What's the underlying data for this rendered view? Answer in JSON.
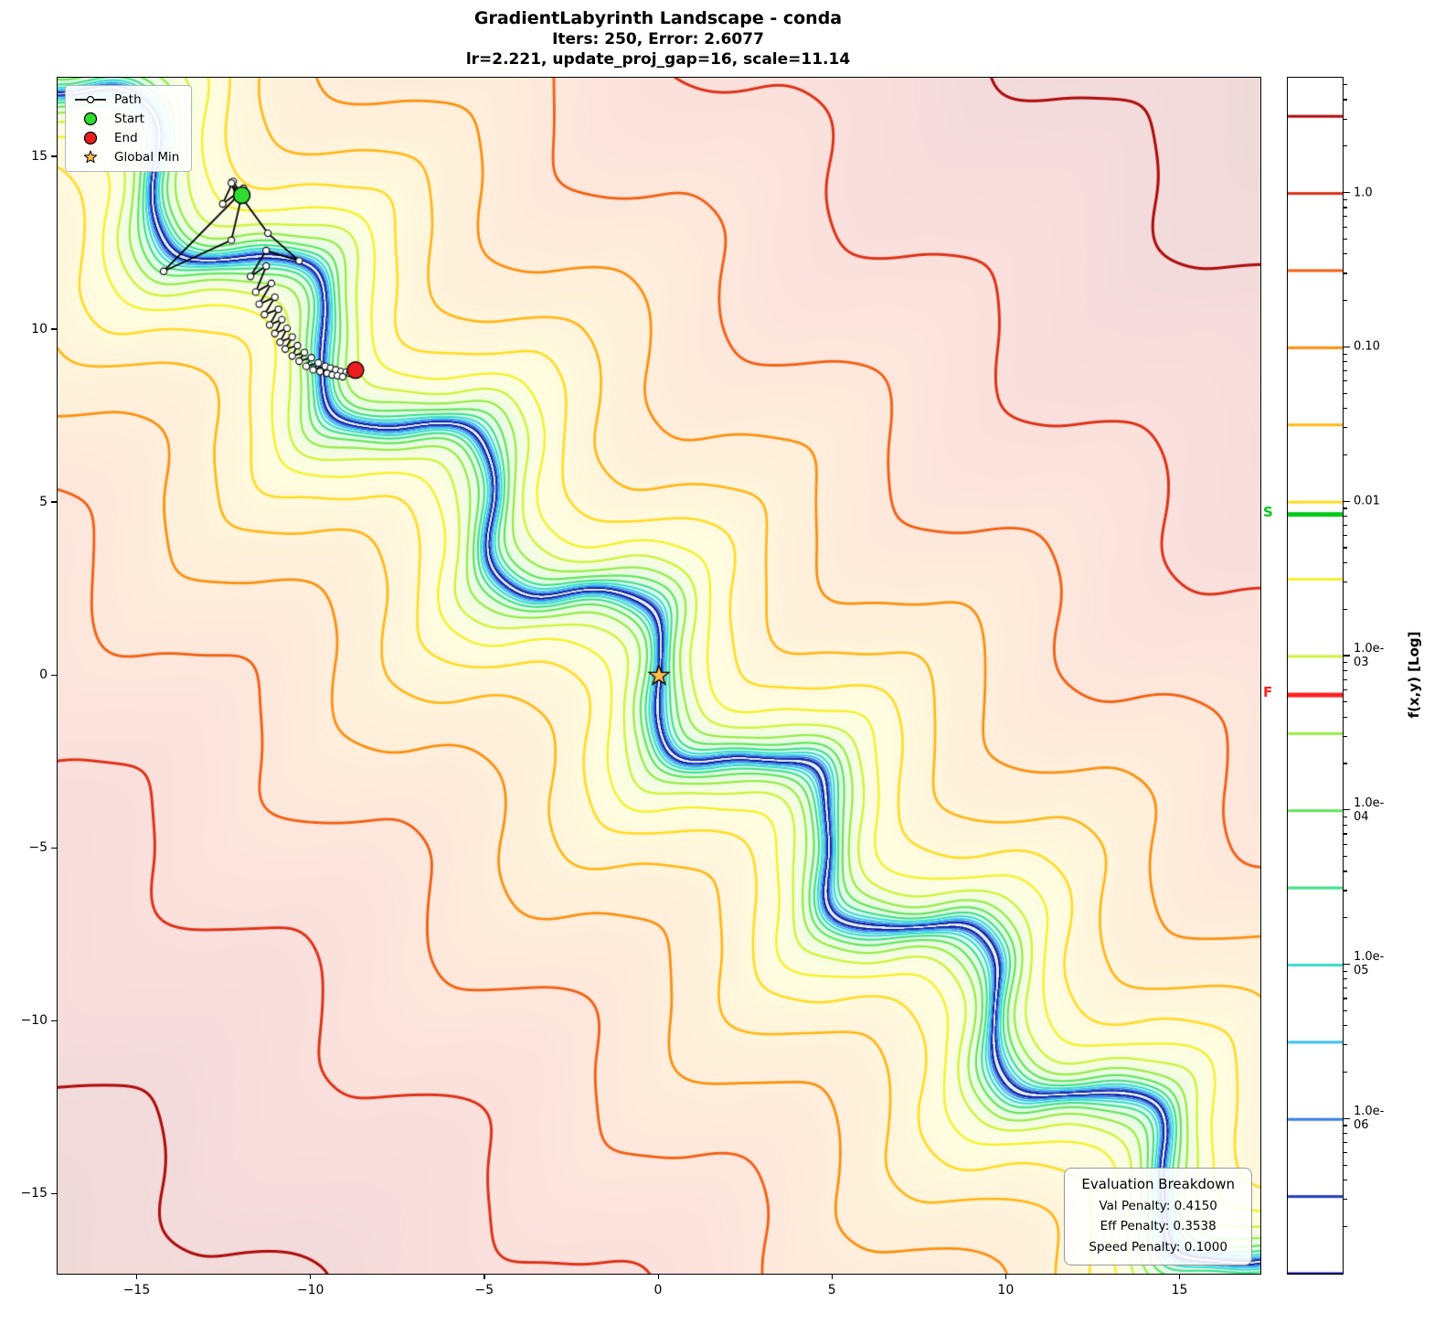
{
  "figure": {
    "title_line1": "GradientLabyrinth Landscape - conda",
    "title_line2": "Iters: 250, Error: 2.6077",
    "title_line3": "lr=2.221, update_proj_gap=16, scale=11.14"
  },
  "legend": {
    "path_label": "Path",
    "start_label": "Start",
    "end_label": "End",
    "global_min_label": "Global Min"
  },
  "evaluation_box": {
    "title": "Evaluation Breakdown",
    "val_penalty": "Val Penalty: 0.4150",
    "eff_penalty": "Eff Penalty: 0.3538",
    "speed_penalty": "Speed Penalty: 0.1000"
  },
  "axes": {
    "x_ticks": [
      "−15",
      "−10",
      "−5",
      "0",
      "5",
      "10",
      "15"
    ],
    "x_tick_values": [
      -15,
      -10,
      -5,
      0,
      5,
      10,
      15
    ],
    "y_ticks": [
      "15",
      "10",
      "5",
      "0",
      "−5",
      "−10",
      "−15"
    ],
    "y_tick_values": [
      15,
      10,
      5,
      0,
      -5,
      -10,
      -15
    ],
    "xlim": [
      -17.3,
      17.3
    ],
    "ylim": [
      -17.3,
      17.3
    ]
  },
  "colorbar": {
    "label": "f(x,y) [Log]",
    "log10_range": [
      -7,
      0.75
    ],
    "ticks": [
      {
        "label": "1.0",
        "log10": 0
      },
      {
        "label": "0.10",
        "log10": -1
      },
      {
        "label": "0.01",
        "log10": -2
      },
      {
        "label": "1.0e-03",
        "log10": -3
      },
      {
        "label": "1.0e-04",
        "log10": -4
      },
      {
        "label": "1.0e-05",
        "log10": -5
      },
      {
        "label": "1.0e-06",
        "log10": -6
      }
    ],
    "start_marker": {
      "label": "S",
      "log10": -2.08,
      "color": "#00c818"
    },
    "final_marker": {
      "label": "F",
      "log10": -3.25,
      "color": "#ff2020"
    }
  },
  "chart_data": {
    "type": "contour",
    "title": "GradientLabyrinth Landscape - conda",
    "subtitle": "Iters: 250, Error: 2.6077",
    "params_line": "lr=2.221, update_proj_gap=16, scale=11.14",
    "iterations": 250,
    "error": 2.6077,
    "lr": 2.221,
    "update_proj_gap": 16,
    "scale": 11.14,
    "val_penalty": 0.415,
    "eff_penalty": 0.3538,
    "speed_penalty": 0.1,
    "zlabel": "f(x,y) [Log]",
    "xlim": [
      -17.3,
      17.3
    ],
    "ylim": [
      -17.3,
      17.3
    ],
    "z_levels_log10": [
      -7,
      -6.5,
      -6,
      -5.5,
      -5,
      -4.5,
      -4,
      -3.5,
      -3,
      -2.5,
      -2,
      -1.5,
      -1,
      -0.5,
      0,
      0.5
    ],
    "surface": {
      "type": "diagonal-sine-valley",
      "u_coef": 0.5,
      "wiggle_amp": 0.9,
      "wiggle_freq": 0.65,
      "ripple_amp": 0.07,
      "ripple_fx": 2.3,
      "ripple_fy": 2.1,
      "power": 3,
      "fmax_log10": 0.75,
      "d_max": 17.3
    },
    "colormap_stops": [
      [
        0.0,
        "#0a0a8c"
      ],
      [
        0.05,
        "#1f2fb4"
      ],
      [
        0.1,
        "#2b5fd9"
      ],
      [
        0.15,
        "#3a97e8"
      ],
      [
        0.2,
        "#3fc6ee"
      ],
      [
        0.25,
        "#35dcd0"
      ],
      [
        0.3,
        "#38dfa0"
      ],
      [
        0.35,
        "#46df6a"
      ],
      [
        0.42,
        "#7ce84e"
      ],
      [
        0.48,
        "#b2ef42"
      ],
      [
        0.54,
        "#e2f638"
      ],
      [
        0.6,
        "#fdf02c"
      ],
      [
        0.66,
        "#ffd51e"
      ],
      [
        0.72,
        "#ffb114"
      ],
      [
        0.78,
        "#fb8c0e"
      ],
      [
        0.84,
        "#f26014"
      ],
      [
        0.9,
        "#e03418"
      ],
      [
        0.95,
        "#c01414"
      ],
      [
        1.0,
        "#8b0000"
      ]
    ],
    "path_color": "#000000",
    "start_color": "#2fdd30",
    "end_color": "#ed1d1d",
    "star_color": "#ffbe4a",
    "start": [
      -12.0,
      13.9
    ],
    "end": [
      -8.73,
      8.84
    ],
    "global_min": [
      0,
      0
    ],
    "path": [
      [
        -12.0,
        13.9
      ],
      [
        -12.25,
        14.3
      ],
      [
        -12.55,
        13.65
      ],
      [
        -11.95,
        14.1
      ],
      [
        -12.3,
        12.6
      ],
      [
        -14.25,
        11.7
      ],
      [
        -12.15,
        13.85
      ],
      [
        -12.3,
        14.25
      ],
      [
        -11.25,
        12.8
      ],
      [
        -10.35,
        12.0
      ],
      [
        -11.3,
        12.3
      ],
      [
        -11.75,
        11.55
      ],
      [
        -11.3,
        11.85
      ],
      [
        -11.6,
        11.1
      ],
      [
        -11.15,
        11.35
      ],
      [
        -11.5,
        10.75
      ],
      [
        -11.05,
        10.95
      ],
      [
        -11.35,
        10.45
      ],
      [
        -10.95,
        10.6
      ],
      [
        -11.2,
        10.15
      ],
      [
        -10.85,
        10.3
      ],
      [
        -11.05,
        9.9
      ],
      [
        -10.7,
        10.05
      ],
      [
        -10.9,
        9.65
      ],
      [
        -10.55,
        9.8
      ],
      [
        -10.75,
        9.45
      ],
      [
        -10.4,
        9.55
      ],
      [
        -10.55,
        9.25
      ],
      [
        -10.2,
        9.35
      ],
      [
        -10.35,
        9.1
      ],
      [
        -10.0,
        9.2
      ],
      [
        -10.15,
        8.95
      ],
      [
        -9.8,
        9.05
      ],
      [
        -9.95,
        8.85
      ],
      [
        -9.6,
        8.95
      ],
      [
        -9.75,
        8.8
      ],
      [
        -9.45,
        8.9
      ],
      [
        -9.55,
        8.75
      ],
      [
        -9.3,
        8.85
      ],
      [
        -9.4,
        8.7
      ],
      [
        -9.15,
        8.8
      ],
      [
        -9.25,
        8.68
      ],
      [
        -9.0,
        8.78
      ],
      [
        -9.1,
        8.65
      ],
      [
        -8.9,
        8.75
      ],
      [
        -8.73,
        8.84
      ]
    ]
  }
}
